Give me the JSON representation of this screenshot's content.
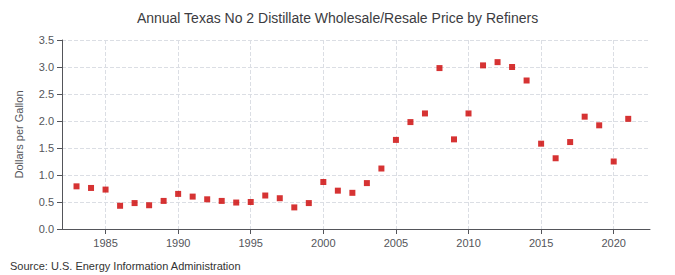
{
  "chart_data": {
    "type": "scatter",
    "title": "Annual Texas No 2 Distillate Wholesale/Resale Price by Refiners",
    "ylabel": "Dollars per Gallon",
    "source": "Source: U.S. Energy Information Administration",
    "x": [
      1983,
      1984,
      1985,
      1986,
      1987,
      1988,
      1989,
      1990,
      1991,
      1992,
      1993,
      1994,
      1995,
      1996,
      1997,
      1998,
      1999,
      2000,
      2001,
      2002,
      2003,
      2004,
      2005,
      2006,
      2007,
      2008,
      2009,
      2010,
      2011,
      2012,
      2013,
      2014,
      2015,
      2016,
      2017,
      2018,
      2019,
      2020,
      2021
    ],
    "values": [
      0.79,
      0.76,
      0.73,
      0.43,
      0.48,
      0.44,
      0.52,
      0.65,
      0.6,
      0.55,
      0.52,
      0.49,
      0.5,
      0.62,
      0.57,
      0.4,
      0.48,
      0.87,
      0.71,
      0.67,
      0.85,
      1.12,
      1.65,
      1.98,
      2.14,
      2.98,
      1.66,
      2.14,
      3.03,
      3.09,
      3.0,
      2.75,
      1.58,
      1.31,
      1.61,
      2.08,
      1.92,
      1.25,
      2.04
    ],
    "color": "#cc0000",
    "marker": "square",
    "xlim": [
      1982,
      2022.5
    ],
    "xticks": [
      1985,
      1990,
      1995,
      2000,
      2005,
      2010,
      2015,
      2020
    ],
    "ylim": [
      0.0,
      3.5
    ],
    "yticks": [
      {
        "value": 0.0,
        "label": "0.0"
      },
      0.5,
      {
        "value": 1.0,
        "label": "1.0"
      },
      1.5,
      {
        "value": 2.0,
        "label": "2.0"
      },
      2.5,
      {
        "value": 3.0,
        "label": "3.0"
      },
      3.5
    ],
    "grid": true
  }
}
